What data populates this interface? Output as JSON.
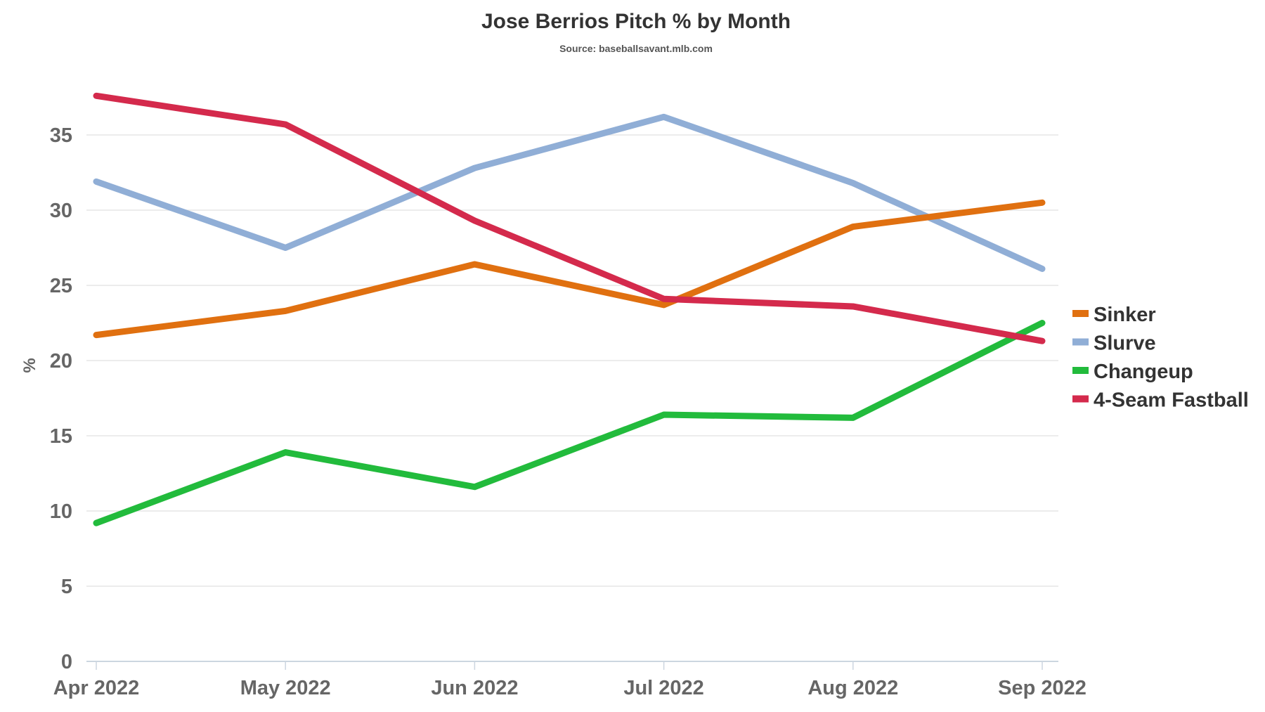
{
  "chart_data": {
    "type": "line",
    "title": "Jose Berrios Pitch % by Month",
    "subtitle": "Source: baseballsavant.mlb.com",
    "xlabel": "",
    "ylabel": "%",
    "categories": [
      "Apr 2022",
      "May 2022",
      "Jun 2022",
      "Jul 2022",
      "Aug 2022",
      "Sep 2022"
    ],
    "ylim": [
      0,
      38
    ],
    "yticks": [
      0,
      5,
      10,
      15,
      20,
      25,
      30,
      35
    ],
    "grid": true,
    "legend_position": "right",
    "series": [
      {
        "name": "Sinker",
        "color": "#e07010",
        "values": [
          21.7,
          23.3,
          26.4,
          23.7,
          28.9,
          30.5
        ]
      },
      {
        "name": "Slurve",
        "color": "#90aed6",
        "values": [
          31.9,
          27.5,
          32.8,
          36.2,
          31.8,
          26.1
        ]
      },
      {
        "name": "Changeup",
        "color": "#22bb3c",
        "values": [
          9.2,
          13.9,
          11.6,
          16.4,
          16.2,
          22.5
        ]
      },
      {
        "name": "4-Seam Fastball",
        "color": "#d42a4c",
        "values": [
          37.6,
          35.7,
          29.3,
          24.1,
          23.6,
          21.3
        ]
      }
    ]
  }
}
